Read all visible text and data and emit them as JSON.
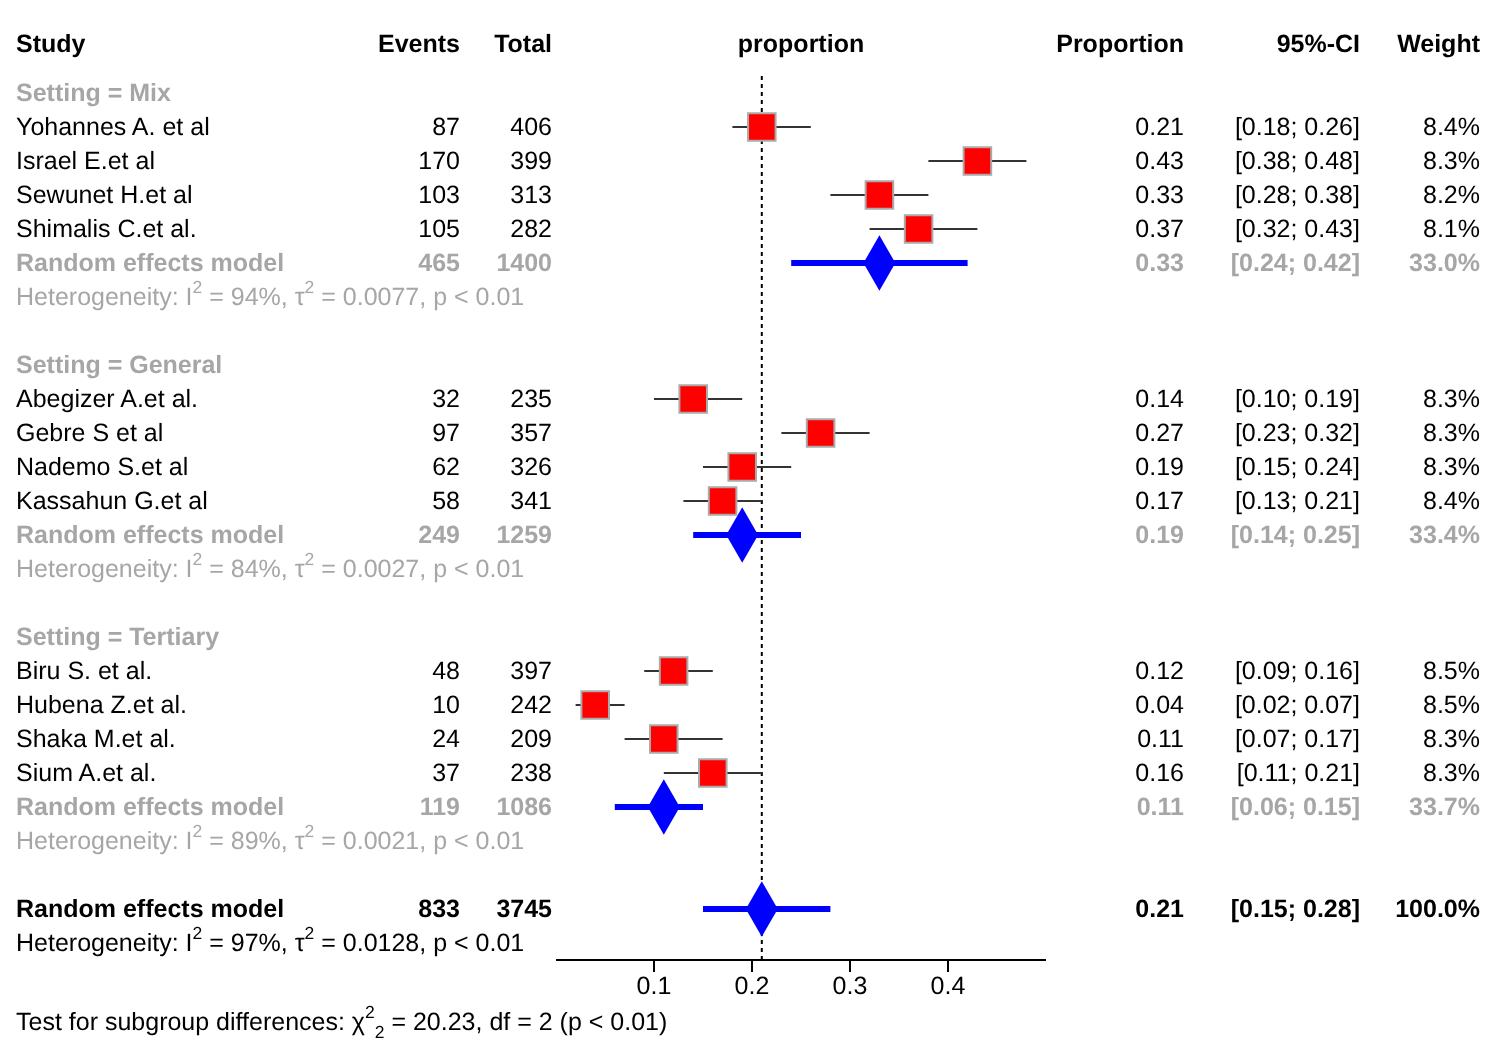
{
  "chart_data": {
    "type": "scatter",
    "orientation": "horizontal",
    "xlabel": "proportion",
    "categories": [
      "Setting = Mix",
      "Yohannes A. et al\t87\t406",
      "Israel E.et al\t170\t399",
      "Sewunet H.et al\t103\t313",
      "Shimalis C.et al.\t105\t282",
      "Random effects model\t465\t1400",
      "Heterogeneity: I$^{2}$ = 94%, τ$^{2}$ = 0.0077, p < 0.01",
      null,
      "Setting = General",
      "Abegizer A.et al.\t32\t235",
      "Gebre S et al\t97\t357",
      "Nademo S.et al\t62\t326",
      "Kassahun G.et al\t58\t341",
      "Random effects model\t249\t1259",
      "Heterogeneity: I$^{2}$ = 84%, τ$^{2}$ = 0.0027, p < 0.01",
      null,
      "Setting = Tertiary",
      "Biru S. et al.\t48\t397",
      "Hubena Z.et al.\t10\t242",
      "Shaka M.et al.\t24\t209",
      "Sium A.et al.\t37\t238",
      "Random effects model\t119\t1086",
      "Heterogeneity: I$^{2}$ = 89%, τ$^{2}$ = 0.0021, p < 0.01",
      null,
      "Random effects model\t833\t3745",
      "Heterogeneity: I$^{2}$ = 97%, τ$^{2}$ = 0.0128, p < 0.01"
    ],
    "series": [
      {
        "color": "#ff0000",
        "marker": "square",
        "values": [
          null,
          0.21,
          0.43,
          0.33,
          0.37,
          null,
          null,
          null,
          null,
          0.14,
          0.27,
          0.19,
          0.17,
          null,
          null,
          null,
          null,
          0.12,
          0.04,
          0.11,
          0.16,
          null,
          null,
          null,
          null,
          null
        ],
        "errors": [
          null,
          [
            0.18,
            0.26
          ],
          [
            0.38,
            0.48
          ],
          [
            0.28,
            0.38
          ],
          [
            0.32,
            0.43
          ],
          null,
          null,
          null,
          null,
          [
            0.1,
            0.19
          ],
          [
            0.23,
            0.32
          ],
          [
            0.15,
            0.24
          ],
          [
            0.13,
            0.21
          ],
          null,
          null,
          null,
          null,
          [
            0.09,
            0.16
          ],
          [
            0.02,
            0.07
          ],
          [
            0.07,
            0.17
          ],
          [
            0.11,
            0.21
          ],
          null,
          null,
          null,
          null,
          null
        ],
        "value_labels": [
          null,
          "0.21\t[0.18; 0.26]\t8.4%",
          "0.43\t[0.38; 0.48]\t8.3%",
          "0.33\t[0.28; 0.38]\t8.2%",
          "0.37\t[0.32; 0.43]\t8.1%",
          null,
          null,
          null,
          null,
          "0.14\t[0.10; 0.19]\t8.3%",
          "0.27\t[0.23; 0.32]\t8.3%",
          "0.19\t[0.15; 0.24]\t8.3%",
          "0.17\t[0.13; 0.21]\t8.4%",
          null,
          null,
          null,
          null,
          "0.12\t[0.09; 0.16]\t8.5%",
          "0.04\t[0.02; 0.07]\t8.5%",
          "0.11\t[0.07; 0.17]\t8.3%",
          "0.16\t[0.11; 0.21]\t8.3%",
          null,
          null,
          null,
          null,
          null
        ]
      },
      {
        "color": "#0000ff",
        "marker": "diamond",
        "values": [
          null,
          null,
          null,
          null,
          null,
          0.33,
          null,
          null,
          null,
          null,
          null,
          null,
          null,
          0.19,
          null,
          null,
          null,
          null,
          null,
          null,
          null,
          0.11,
          null,
          null,
          0.21,
          null
        ],
        "errors": [
          null,
          null,
          null,
          null,
          null,
          [
            0.24,
            0.42
          ],
          null,
          null,
          null,
          null,
          null,
          null,
          null,
          [
            0.14,
            0.25
          ],
          null,
          null,
          null,
          null,
          null,
          null,
          null,
          [
            0.06,
            0.15
          ],
          null,
          null,
          [
            0.15,
            0.28
          ],
          null
        ],
        "value_labels": [
          null,
          null,
          null,
          null,
          null,
          "0.33\t[0.24; 0.42]\t33.0%",
          null,
          null,
          null,
          null,
          null,
          null,
          null,
          "0.19\t[0.14; 0.25]\t33.4%",
          null,
          null,
          null,
          null,
          null,
          null,
          null,
          "0.11\t[0.06; 0.15]\t33.7%",
          null,
          null,
          "0.21\t[0.15; 0.28]\t100.0%",
          null
        ]
      }
    ],
    "xlim": [
      0,
      0.5
    ],
    "xticks": [
      0.1,
      0.2,
      0.3,
      0.4
    ],
    "ref_lines": [
      {
        "axis": "x",
        "value": 0.21,
        "color": "#000000",
        "line_style": "dotted"
      }
    ],
    "annotations": [
      "Study\tEvents\tTotal",
      "Proportion\t95%-CI\tWeight",
      "Test for subgroup differences: χ$^{2}$$_{2}$ = 20.23, df = 2 (p < 0.01)"
    ]
  }
}
